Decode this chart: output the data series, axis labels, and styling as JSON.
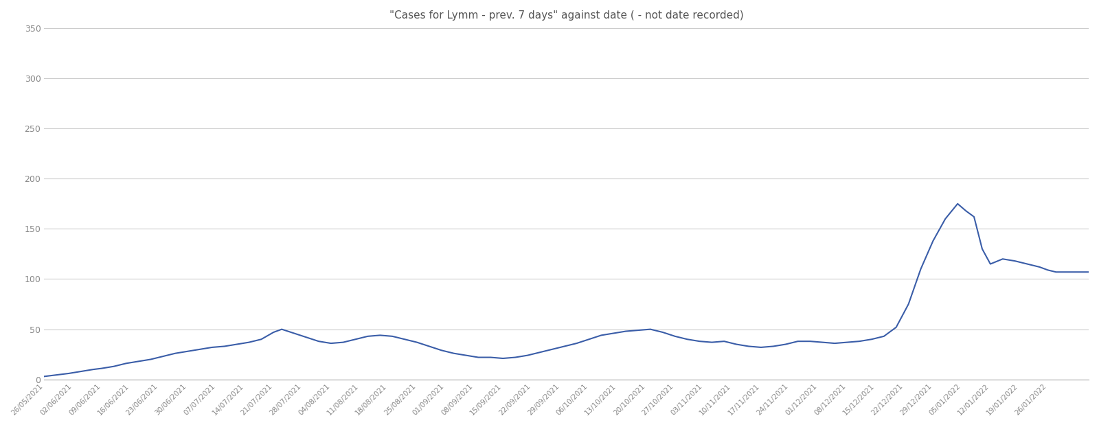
{
  "title": "\"Cases for Lymm - prev. 7 days\" against date ( - not date recorded)",
  "line_color": "#3A5DA8",
  "line_width": 1.5,
  "bg_color": "#ffffff",
  "grid_color": "#cccccc",
  "title_color": "#555555",
  "tick_label_color": "#888888",
  "ylim": [
    0,
    350
  ],
  "yticks": [
    0,
    50,
    100,
    150,
    200,
    250,
    300,
    350
  ],
  "dates": [
    "2021-05-26",
    "2021-05-29",
    "2021-06-01",
    "2021-06-04",
    "2021-06-07",
    "2021-06-10",
    "2021-06-13",
    "2021-06-16",
    "2021-06-19",
    "2021-06-22",
    "2021-06-25",
    "2021-06-28",
    "2021-07-01",
    "2021-07-04",
    "2021-07-07",
    "2021-07-10",
    "2021-07-13",
    "2021-07-16",
    "2021-07-19",
    "2021-07-22",
    "2021-07-25",
    "2021-07-28",
    "2021-07-31",
    "2021-08-03",
    "2021-08-06",
    "2021-08-09",
    "2021-08-12",
    "2021-08-15",
    "2021-08-18",
    "2021-08-21",
    "2021-08-24",
    "2021-08-27",
    "2021-08-30",
    "2021-09-02",
    "2021-09-05",
    "2021-09-08",
    "2021-09-11",
    "2021-09-14",
    "2021-09-17",
    "2021-09-20",
    "2021-09-23",
    "2021-09-26",
    "2021-09-29",
    "2021-10-02",
    "2021-10-05",
    "2021-10-08",
    "2021-10-11",
    "2021-10-14",
    "2021-10-17",
    "2021-10-20",
    "2021-10-23",
    "2021-10-26",
    "2021-10-29",
    "2021-11-01",
    "2021-11-04",
    "2021-11-07",
    "2021-11-10",
    "2021-11-13",
    "2021-11-16",
    "2021-11-19",
    "2021-11-22",
    "2021-11-25",
    "2021-11-28",
    "2021-12-01",
    "2021-12-04",
    "2021-12-07",
    "2021-12-10",
    "2021-12-13",
    "2021-12-16",
    "2021-12-19",
    "2021-12-22",
    "2021-12-25",
    "2021-12-28",
    "2021-12-31",
    "2022-01-03",
    "2022-01-06",
    "2022-01-09",
    "2022-01-12",
    "2022-01-15",
    "2022-01-18",
    "2022-01-21",
    "2022-01-24",
    "2022-01-27",
    "2022-01-30",
    "2022-02-02",
    "2022-02-05"
  ],
  "values": [
    3,
    5,
    8,
    10,
    12,
    14,
    16,
    18,
    20,
    23,
    25,
    28,
    30,
    32,
    33,
    35,
    36,
    38,
    42,
    46,
    50,
    47,
    43,
    40,
    38,
    37,
    40,
    42,
    43,
    43,
    40,
    37,
    33,
    28,
    26,
    24,
    23,
    22,
    22,
    24,
    26,
    28,
    32,
    37,
    42,
    46,
    48,
    50,
    35,
    40,
    42,
    43,
    45,
    40,
    38,
    37,
    38,
    35,
    32,
    32,
    35,
    37,
    38,
    40,
    40,
    38,
    38,
    37,
    36,
    38,
    45,
    55,
    90,
    120,
    145,
    140,
    128,
    125,
    122,
    118,
    115,
    118,
    115,
    110,
    108,
    107
  ],
  "values_v2": [
    3,
    5,
    8,
    10,
    12,
    13,
    14,
    16,
    19,
    22,
    25,
    28,
    30,
    32,
    33,
    34,
    35,
    36,
    38,
    44,
    50,
    47,
    43,
    39,
    37,
    36,
    38,
    41,
    43,
    43,
    40,
    37,
    33,
    27,
    25,
    24,
    22,
    22,
    21,
    22,
    25,
    27,
    30,
    36,
    42,
    46,
    49,
    50,
    35,
    39,
    42,
    43,
    44,
    40,
    38,
    37,
    38,
    35,
    32,
    32,
    35,
    37,
    38,
    40,
    40,
    38,
    38,
    37,
    36,
    38,
    44,
    55,
    90,
    120,
    145,
    140,
    128,
    124,
    122,
    118,
    115,
    118,
    115,
    110,
    108,
    107
  ],
  "xtick_dates": [
    "2021-05-26",
    "2021-06-02",
    "2021-06-09",
    "2021-06-16",
    "2021-06-23",
    "2021-06-30",
    "2021-07-07",
    "2021-07-14",
    "2021-07-21",
    "2021-07-28",
    "2021-08-04",
    "2021-08-11",
    "2021-08-18",
    "2021-08-25",
    "2021-09-01",
    "2021-09-08",
    "2021-09-15",
    "2021-09-22",
    "2021-09-29",
    "2021-10-06",
    "2021-10-13",
    "2021-10-20",
    "2021-10-27",
    "2021-11-03",
    "2021-11-10",
    "2021-11-17",
    "2021-11-24",
    "2021-12-01",
    "2021-12-08",
    "2021-12-15",
    "2021-12-22",
    "2021-12-29",
    "2022-01-05",
    "2022-01-12",
    "2022-01-19",
    "2022-01-26"
  ],
  "xtick_labels": [
    "26/05/2021",
    "02/06/2021",
    "09/06/2021",
    "16/06/2021",
    "23/06/2021",
    "30/06/2021",
    "07/07/2021",
    "14/07/2021",
    "21/07/2021",
    "28/07/2021",
    "04/08/2021",
    "11/08/2021",
    "18/08/2021",
    "25/08/2021",
    "01/09/2021",
    "08/09/2021",
    "15/09/2021",
    "22/09/2021",
    "29/09/2021",
    "06/10/2021",
    "13/10/2021",
    "20/10/2021",
    "27/10/2021",
    "03/11/2021",
    "10/11/2021",
    "17/11/2021",
    "24/11/2021",
    "01/12/2021",
    "08/12/2021",
    "15/12/2021",
    "22/12/2021",
    "29/12/2021",
    "05/01/2022",
    "12/01/2022",
    "19/01/2022",
    "26/01/2022"
  ]
}
